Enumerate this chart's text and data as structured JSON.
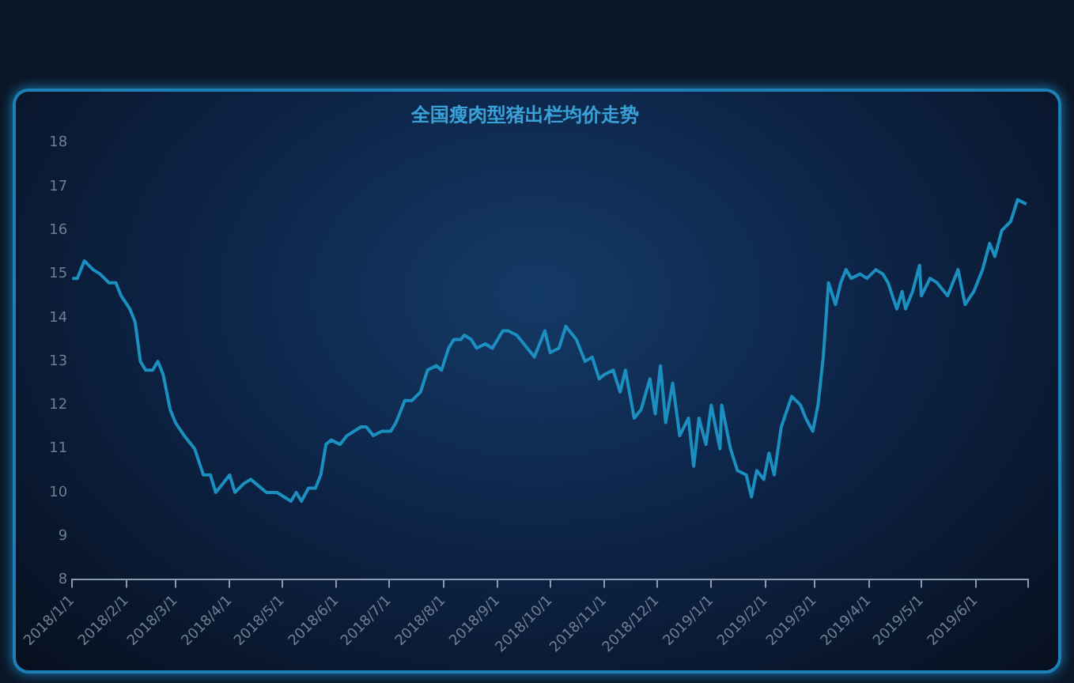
{
  "chart_data": {
    "type": "line",
    "title": "全国瘦肉型猪出栏均价走势",
    "x": [
      "2018-01-01",
      "2018-01-04",
      "2018-01-08",
      "2018-01-13",
      "2018-01-17",
      "2018-01-22",
      "2018-01-26",
      "2018-01-29",
      "2018-02-03",
      "2018-02-06",
      "2018-02-09",
      "2018-02-12",
      "2018-02-16",
      "2018-02-19",
      "2018-02-22",
      "2018-02-26",
      "2018-03-01",
      "2018-03-06",
      "2018-03-12",
      "2018-03-17",
      "2018-03-21",
      "2018-03-24",
      "2018-03-28",
      "2018-04-01",
      "2018-04-04",
      "2018-04-09",
      "2018-04-13",
      "2018-04-16",
      "2018-04-22",
      "2018-04-28",
      "2018-05-06",
      "2018-05-09",
      "2018-05-12",
      "2018-05-16",
      "2018-05-20",
      "2018-05-23",
      "2018-05-26",
      "2018-05-29",
      "2018-06-03",
      "2018-06-07",
      "2018-06-15",
      "2018-06-18",
      "2018-06-22",
      "2018-06-27",
      "2018-07-02",
      "2018-07-05",
      "2018-07-10",
      "2018-07-14",
      "2018-07-19",
      "2018-07-23",
      "2018-07-28",
      "2018-07-31",
      "2018-08-04",
      "2018-08-07",
      "2018-08-11",
      "2018-08-13",
      "2018-08-17",
      "2018-08-20",
      "2018-08-25",
      "2018-08-29",
      "2018-09-04",
      "2018-09-07",
      "2018-09-12",
      "2018-09-18",
      "2018-09-22",
      "2018-09-28",
      "2018-10-01",
      "2018-10-06",
      "2018-10-10",
      "2018-10-16",
      "2018-10-21",
      "2018-10-25",
      "2018-10-29",
      "2018-11-01",
      "2018-11-06",
      "2018-11-10",
      "2018-11-13",
      "2018-11-18",
      "2018-11-22",
      "2018-11-27",
      "2018-11-30",
      "2018-12-03",
      "2018-12-06",
      "2018-12-10",
      "2018-12-14",
      "2018-12-19",
      "2018-12-22",
      "2018-12-25",
      "2018-12-29",
      "2019-01-01",
      "2019-01-06",
      "2019-01-07",
      "2019-01-12",
      "2019-01-16",
      "2019-01-21",
      "2019-01-24",
      "2019-01-27",
      "2019-01-31",
      "2019-02-03",
      "2019-02-06",
      "2019-02-10",
      "2019-02-16",
      "2019-02-21",
      "2019-02-24",
      "2019-02-28",
      "2019-03-03",
      "2019-03-06",
      "2019-03-09",
      "2019-03-13",
      "2019-03-16",
      "2019-03-19",
      "2019-03-22",
      "2019-03-27",
      "2019-03-31",
      "2019-04-05",
      "2019-04-09",
      "2019-04-12",
      "2019-04-17",
      "2019-04-20",
      "2019-04-22",
      "2019-04-26",
      "2019-04-30",
      "2019-05-01",
      "2019-05-06",
      "2019-05-10",
      "2019-05-16",
      "2019-05-22",
      "2019-05-26",
      "2019-05-31",
      "2019-06-05",
      "2019-06-09",
      "2019-06-12",
      "2019-06-16",
      "2019-06-21",
      "2019-06-25",
      "2019-06-30"
    ],
    "series": [
      {
        "color": "#1b8fbf",
        "values": [
          14.9,
          14.9,
          15.3,
          15.1,
          15.0,
          14.8,
          14.8,
          14.5,
          14.2,
          13.9,
          13.0,
          12.8,
          12.8,
          13.0,
          12.7,
          11.9,
          11.6,
          11.3,
          11.0,
          10.4,
          10.4,
          10.0,
          10.2,
          10.4,
          10.0,
          10.2,
          10.3,
          10.2,
          10.0,
          10.0,
          9.8,
          10.0,
          9.8,
          10.1,
          10.1,
          10.4,
          11.1,
          11.2,
          11.1,
          11.3,
          11.5,
          11.5,
          11.3,
          11.4,
          11.4,
          11.6,
          12.1,
          12.1,
          12.3,
          12.8,
          12.9,
          12.8,
          13.3,
          13.5,
          13.5,
          13.6,
          13.5,
          13.3,
          13.4,
          13.3,
          13.7,
          13.7,
          13.6,
          13.3,
          13.1,
          13.7,
          13.2,
          13.3,
          13.8,
          13.5,
          13.0,
          13.1,
          12.6,
          12.7,
          12.8,
          12.3,
          12.8,
          11.7,
          11.9,
          12.6,
          11.8,
          12.9,
          11.6,
          12.5,
          11.3,
          11.7,
          10.6,
          11.7,
          11.1,
          12.0,
          11.0,
          12.0,
          11.0,
          10.5,
          10.4,
          9.9,
          10.5,
          10.3,
          10.9,
          10.4,
          11.5,
          12.2,
          12.0,
          11.7,
          11.4,
          12.0,
          13.1,
          14.8,
          14.3,
          14.8,
          15.1,
          14.9,
          15.0,
          14.9,
          15.1,
          15.0,
          14.8,
          14.2,
          14.6,
          14.2,
          14.6,
          15.2,
          14.5,
          14.9,
          14.8,
          14.5,
          15.1,
          14.3,
          14.6,
          15.1,
          15.7,
          15.4,
          16.0,
          16.2,
          16.7,
          16.6
        ]
      }
    ],
    "ylim": [
      8,
      18
    ],
    "yticks": [
      8,
      9,
      10,
      11,
      12,
      13,
      14,
      15,
      16,
      17,
      18
    ],
    "xlim": [
      "2018-01-01",
      "2019-07-01"
    ],
    "xticks": [
      {
        "value": "2018-01-01",
        "label": "2018/1/1"
      },
      {
        "value": "2018-02-01",
        "label": "2018/2/1"
      },
      {
        "value": "2018-03-01",
        "label": "2018/3/1"
      },
      {
        "value": "2018-04-01",
        "label": "2018/4/1"
      },
      {
        "value": "2018-05-01",
        "label": "2018/5/1"
      },
      {
        "value": "2018-06-01",
        "label": "2018/6/1"
      },
      {
        "value": "2018-07-01",
        "label": "2018/7/1"
      },
      {
        "value": "2018-08-01",
        "label": "2018/8/1"
      },
      {
        "value": "2018-09-01",
        "label": "2018/9/1"
      },
      {
        "value": "2018-10-01",
        "label": "2018/10/1"
      },
      {
        "value": "2018-11-01",
        "label": "2018/11/1"
      },
      {
        "value": "2018-12-01",
        "label": "2018/12/1"
      },
      {
        "value": "2019-01-01",
        "label": "2019/1/1"
      },
      {
        "value": "2019-02-01",
        "label": "2019/2/1"
      },
      {
        "value": "2019-03-01",
        "label": "2019/3/1"
      },
      {
        "value": "2019-04-01",
        "label": "2019/4/1"
      },
      {
        "value": "2019-05-01",
        "label": "2019/5/1"
      },
      {
        "value": "2019-06-01",
        "label": "2019/6/1"
      },
      {
        "value": "2019-07-01",
        "label": null
      }
    ],
    "grid": false,
    "legend": false,
    "marker": "none",
    "line_style": "solid"
  }
}
